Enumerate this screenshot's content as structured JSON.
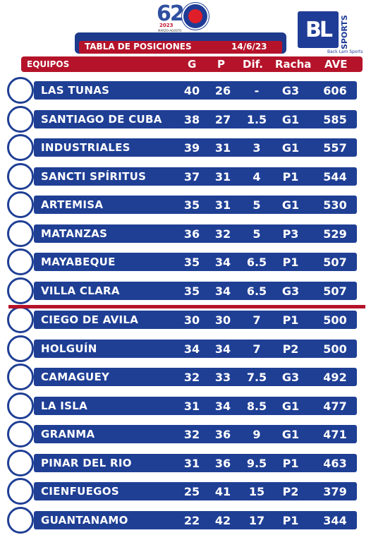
{
  "header": {
    "edition": "62",
    "year": "2023",
    "dates": "MARZO-AGOSTO",
    "title": "TABLA DE POSICIONES",
    "date": "14/6/23",
    "brand": "BL",
    "brand_sports": "SPORTS",
    "brand_tag": "Back Lam Sports"
  },
  "columns": {
    "team": "EQUIPOS",
    "g": "G",
    "p": "P",
    "dif": "Dif.",
    "racha": "Racha",
    "ave": "AVE"
  },
  "colors": {
    "row_bg": "#1f3f95",
    "accent": "#b5132a"
  },
  "rows": [
    {
      "team": "LAS TUNAS",
      "g": "40",
      "p": "26",
      "dif": "-",
      "racha": "G3",
      "ave": "606",
      "icon": "las-tunas-logo"
    },
    {
      "team": "SANTIAGO DE CUBA",
      "g": "38",
      "p": "27",
      "dif": "1.5",
      "racha": "G1",
      "ave": "585",
      "icon": "santiago-logo"
    },
    {
      "team": "INDUSTRIALES",
      "g": "39",
      "p": "31",
      "dif": "3",
      "racha": "G1",
      "ave": "557",
      "icon": "industriales-logo"
    },
    {
      "team": "SANCTI SPÍRITUS",
      "g": "37",
      "p": "31",
      "dif": "4",
      "racha": "P1",
      "ave": "544",
      "icon": "sancti-spiritus-logo"
    },
    {
      "team": "ARTEMISA",
      "g": "35",
      "p": "31",
      "dif": "5",
      "racha": "G1",
      "ave": "530",
      "icon": "artemisa-logo"
    },
    {
      "team": "MATANZAS",
      "g": "36",
      "p": "32",
      "dif": "5",
      "racha": "P3",
      "ave": "529",
      "icon": "matanzas-logo"
    },
    {
      "team": "MAYABEQUE",
      "g": "35",
      "p": "34",
      "dif": "6.5",
      "racha": "P1",
      "ave": "507",
      "icon": "mayabeque-logo"
    },
    {
      "team": "VILLA CLARA",
      "g": "35",
      "p": "34",
      "dif": "6.5",
      "racha": "G3",
      "ave": "507",
      "icon": "villa-clara-logo"
    },
    {
      "team": "CIEGO DE AVILA",
      "g": "30",
      "p": "30",
      "dif": "7",
      "racha": "P1",
      "ave": "500",
      "icon": "ciego-de-avila-logo"
    },
    {
      "team": "HOLGUÍN",
      "g": "34",
      "p": "34",
      "dif": "7",
      "racha": "P2",
      "ave": "500",
      "icon": "holguin-logo"
    },
    {
      "team": "CAMAGUEY",
      "g": "32",
      "p": "33",
      "dif": "7.5",
      "racha": "G3",
      "ave": "492",
      "icon": "camaguey-logo"
    },
    {
      "team": "LA ISLA",
      "g": "31",
      "p": "34",
      "dif": "8.5",
      "racha": "G1",
      "ave": "477",
      "icon": "la-isla-logo"
    },
    {
      "team": "GRANMA",
      "g": "32",
      "p": "36",
      "dif": "9",
      "racha": "G1",
      "ave": "471",
      "icon": "granma-logo"
    },
    {
      "team": "PINAR DEL RIO",
      "g": "31",
      "p": "36",
      "dif": "9.5",
      "racha": "P1",
      "ave": "463",
      "icon": "pinar-del-rio-logo"
    },
    {
      "team": "CIENFUEGOS",
      "g": "25",
      "p": "41",
      "dif": "15",
      "racha": "P2",
      "ave": "379",
      "icon": "cienfuegos-logo"
    },
    {
      "team": "GUANTANAMO",
      "g": "22",
      "p": "42",
      "dif": "17",
      "racha": "P1",
      "ave": "344",
      "icon": "guantanamo-logo"
    }
  ]
}
